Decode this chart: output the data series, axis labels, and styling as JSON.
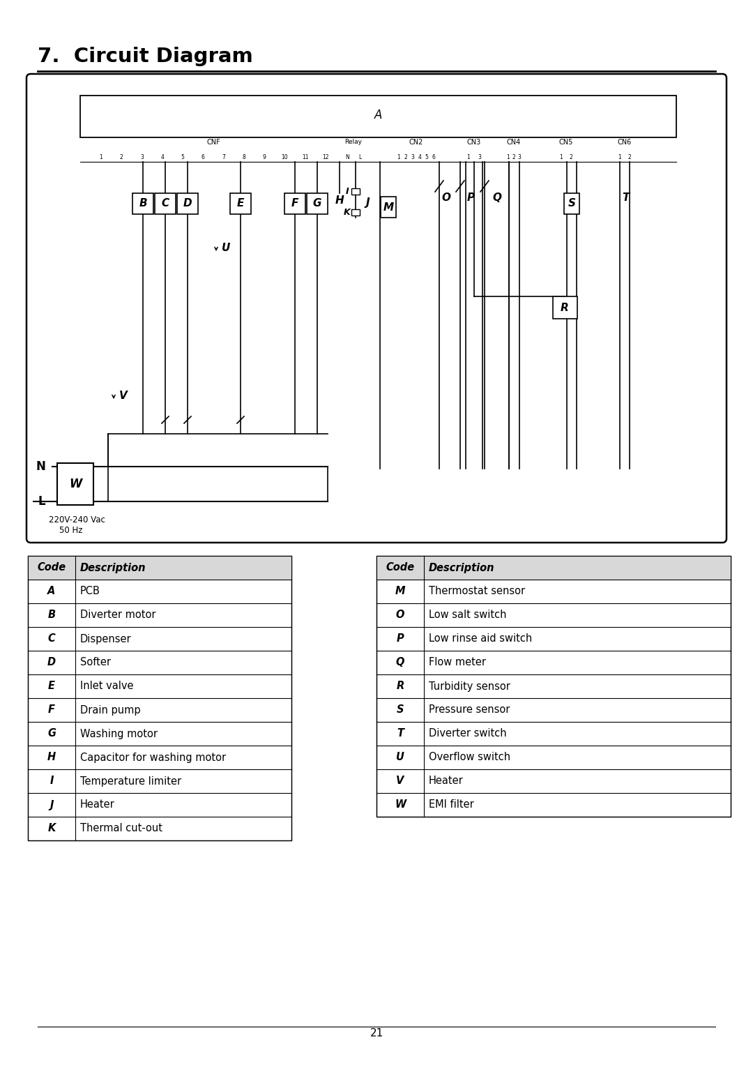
{
  "title": "7.  Circuit Diagram",
  "page_number": "21",
  "background_color": "#ffffff",
  "table_left": [
    [
      "Code",
      "Description"
    ],
    [
      "A",
      "PCB"
    ],
    [
      "B",
      "Diverter motor"
    ],
    [
      "C",
      "Dispenser"
    ],
    [
      "D",
      "Softer"
    ],
    [
      "E",
      "Inlet valve"
    ],
    [
      "F",
      "Drain pump"
    ],
    [
      "G",
      "Washing motor"
    ],
    [
      "H",
      "Capacitor for washing motor"
    ],
    [
      "I",
      "Temperature limiter"
    ],
    [
      "J",
      "Heater"
    ],
    [
      "K",
      "Thermal cut-out"
    ]
  ],
  "table_right": [
    [
      "Code",
      "Description"
    ],
    [
      "M",
      "Thermostat sensor"
    ],
    [
      "O",
      "Low salt switch"
    ],
    [
      "P",
      "Low rinse aid switch"
    ],
    [
      "Q",
      "Flow meter"
    ],
    [
      "R",
      "Turbidity sensor"
    ],
    [
      "S",
      "Pressure sensor"
    ],
    [
      "T",
      "Diverter switch"
    ],
    [
      "U",
      "Overflow switch"
    ],
    [
      "V",
      "Heater"
    ],
    [
      "W",
      "EMI filter"
    ]
  ]
}
